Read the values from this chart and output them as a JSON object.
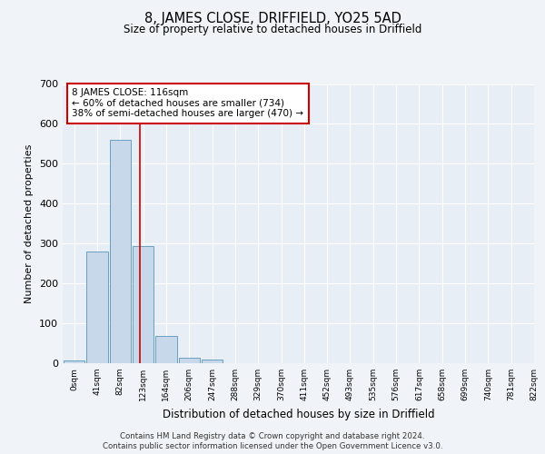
{
  "title": "8, JAMES CLOSE, DRIFFIELD, YO25 5AD",
  "subtitle": "Size of property relative to detached houses in Driffield",
  "xlabel": "Distribution of detached houses by size in Driffield",
  "ylabel": "Number of detached properties",
  "bin_labels": [
    "0sqm",
    "41sqm",
    "82sqm",
    "123sqm",
    "164sqm",
    "206sqm",
    "247sqm",
    "288sqm",
    "329sqm",
    "370sqm",
    "411sqm",
    "452sqm",
    "493sqm",
    "535sqm",
    "576sqm",
    "617sqm",
    "658sqm",
    "699sqm",
    "740sqm",
    "781sqm",
    "822sqm"
  ],
  "bar_heights": [
    7,
    281,
    560,
    293,
    68,
    14,
    8,
    0,
    0,
    0,
    0,
    0,
    0,
    0,
    0,
    0,
    0,
    0,
    0,
    0
  ],
  "bar_color": "#c8d8eb",
  "bar_edge_color": "#6a9fc0",
  "vline_color": "#cc0000",
  "vline_x": 2.854,
  "annotation_title": "8 JAMES CLOSE: 116sqm",
  "annotation_line1": "← 60% of detached houses are smaller (734)",
  "annotation_line2": "38% of semi-detached houses are larger (470) →",
  "annotation_box_facecolor": "#ffffff",
  "annotation_box_edgecolor": "#cc0000",
  "ylim": [
    0,
    700
  ],
  "yticks": [
    0,
    100,
    200,
    300,
    400,
    500,
    600,
    700
  ],
  "background_color": "#f0f4f8",
  "plot_background_color": "#e8eef5",
  "grid_color": "#ffffff",
  "footer_line1": "Contains HM Land Registry data © Crown copyright and database right 2024.",
  "footer_line2": "Contains public sector information licensed under the Open Government Licence v3.0.",
  "num_bins": 20
}
